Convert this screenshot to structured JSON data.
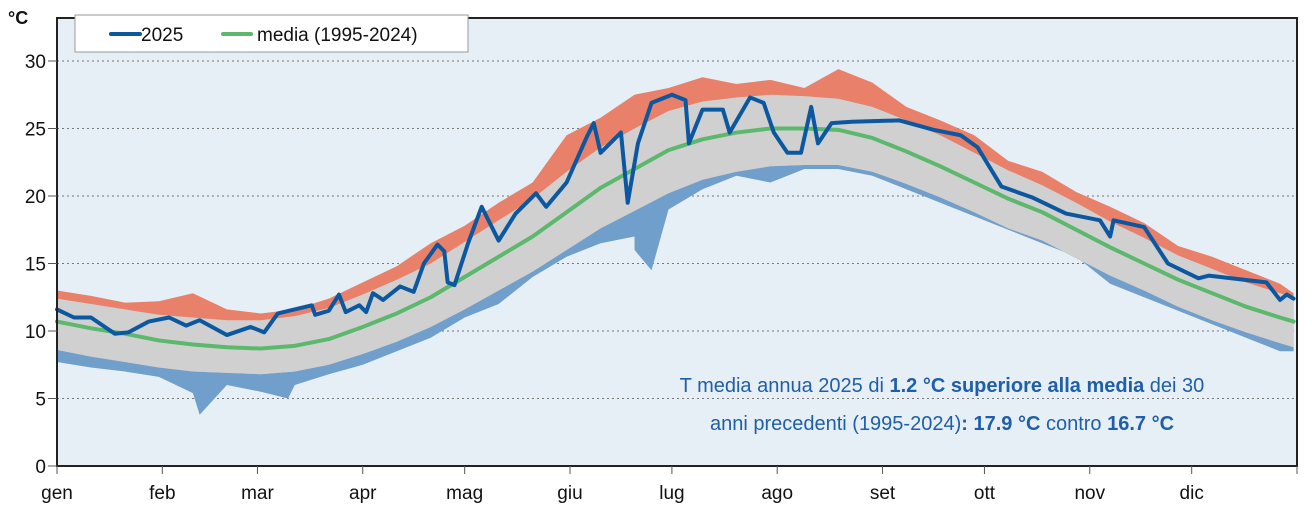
{
  "chart_data": {
    "type": "area",
    "ylabel": "°C",
    "ylim": [
      0,
      30
    ],
    "yticks": [
      0,
      5,
      10,
      15,
      20,
      25,
      30
    ],
    "xlim_days": [
      0,
      365
    ],
    "months": [
      {
        "label": "gen",
        "day": 0
      },
      {
        "label": "feb",
        "day": 31
      },
      {
        "label": "mar",
        "day": 59
      },
      {
        "label": "apr",
        "day": 90
      },
      {
        "label": "mag",
        "day": 120
      },
      {
        "label": "giu",
        "day": 151
      },
      {
        "label": "lug",
        "day": 181
      },
      {
        "label": "ago",
        "day": 212
      },
      {
        "label": "set",
        "day": 243
      },
      {
        "label": "ott",
        "day": 273
      },
      {
        "label": "nov",
        "day": 304
      },
      {
        "label": "dic",
        "day": 334
      }
    ],
    "grid": true,
    "legend": {
      "position": "top-left",
      "entries": [
        "2025",
        "media (1995-2024)"
      ]
    },
    "colors": {
      "y2025": "#0b58a0",
      "mean": "#5cb86c",
      "above": "#e8806a",
      "band": "#d0d0d0",
      "below": "#6f9fca",
      "plot_bg": "#e6eef6"
    },
    "ref_days": [
      0,
      10,
      20,
      30,
      40,
      50,
      60,
      70,
      80,
      90,
      100,
      110,
      120,
      130,
      140,
      150,
      160,
      170,
      180,
      190,
      200,
      210,
      220,
      230,
      240,
      250,
      260,
      270,
      280,
      290,
      300,
      310,
      320,
      330,
      340,
      350,
      360,
      364
    ],
    "ref_mean": [
      10.7,
      10.2,
      9.8,
      9.3,
      9.0,
      8.8,
      8.7,
      8.9,
      9.4,
      10.3,
      11.3,
      12.5,
      14.0,
      15.5,
      17.0,
      18.8,
      20.6,
      22.0,
      23.4,
      24.2,
      24.7,
      25.0,
      25.0,
      24.9,
      24.3,
      23.3,
      22.2,
      21.0,
      19.8,
      18.8,
      17.5,
      16.2,
      15.0,
      13.8,
      12.8,
      11.8,
      11.0,
      10.7
    ],
    "ref_band_high": [
      12.4,
      12.0,
      11.6,
      11.2,
      11.0,
      10.8,
      10.8,
      11.1,
      11.7,
      12.7,
      13.8,
      15.0,
      16.6,
      18.2,
      19.8,
      21.8,
      23.6,
      25.0,
      26.3,
      27.0,
      27.3,
      27.5,
      27.4,
      27.2,
      26.6,
      25.6,
      24.5,
      23.2,
      21.9,
      20.8,
      19.5,
      18.1,
      16.9,
      15.6,
      14.6,
      13.6,
      12.8,
      12.5
    ],
    "ref_band_low": [
      8.6,
      8.1,
      7.7,
      7.3,
      7.0,
      6.9,
      6.8,
      7.0,
      7.5,
      8.3,
      9.2,
      10.3,
      11.6,
      13.0,
      14.4,
      16.0,
      17.6,
      18.9,
      20.2,
      21.2,
      21.8,
      22.2,
      22.3,
      22.3,
      21.8,
      20.9,
      19.9,
      18.8,
      17.6,
      16.7,
      15.4,
      14.1,
      13.0,
      11.8,
      10.8,
      9.9,
      9.1,
      8.8
    ],
    "ref_max": [
      13.0,
      12.6,
      12.1,
      12.2,
      12.8,
      11.6,
      11.3,
      11.6,
      12.4,
      13.6,
      14.8,
      16.5,
      17.8,
      19.5,
      21.0,
      24.5,
      25.8,
      27.5,
      28.0,
      28.8,
      28.3,
      28.6,
      28.0,
      29.4,
      28.4,
      26.6,
      25.6,
      24.5,
      22.6,
      21.8,
      20.3,
      19.2,
      18.0,
      16.3,
      15.5,
      14.5,
      13.5,
      12.8
    ],
    "ref_min": [
      7.7,
      7.3,
      7.0,
      6.6,
      5.4,
      6.0,
      5.5,
      6.0,
      6.8,
      7.5,
      8.5,
      9.5,
      11.0,
      12.0,
      14.0,
      15.5,
      16.5,
      17.0,
      19.0,
      20.5,
      21.5,
      21.0,
      22.0,
      22.0,
      21.5,
      20.5,
      19.5,
      18.5,
      17.5,
      16.5,
      15.5,
      13.5,
      12.5,
      11.5,
      10.5,
      9.5,
      8.5,
      8.5
    ],
    "ref_min_spikes": [
      [
        42,
        3.8
      ],
      [
        68,
        5.0
      ],
      [
        175,
        14.5
      ],
      [
        170,
        16.0
      ]
    ],
    "series_2025": [
      [
        0,
        11.6
      ],
      [
        5,
        11.0
      ],
      [
        10,
        11.0
      ],
      [
        17,
        9.8
      ],
      [
        21,
        9.9
      ],
      [
        27,
        10.7
      ],
      [
        33,
        11.0
      ],
      [
        38,
        10.4
      ],
      [
        42,
        10.8
      ],
      [
        50,
        9.7
      ],
      [
        57,
        10.3
      ],
      [
        61,
        9.9
      ],
      [
        65,
        11.3
      ],
      [
        75,
        11.9
      ],
      [
        76,
        11.2
      ],
      [
        80,
        11.5
      ],
      [
        83,
        12.7
      ],
      [
        85,
        11.4
      ],
      [
        89,
        11.9
      ],
      [
        91,
        11.4
      ],
      [
        93,
        12.8
      ],
      [
        96,
        12.3
      ],
      [
        101,
        13.3
      ],
      [
        105,
        12.9
      ],
      [
        108,
        15.0
      ],
      [
        112,
        16.4
      ],
      [
        114,
        15.9
      ],
      [
        115,
        13.6
      ],
      [
        117,
        13.4
      ],
      [
        121,
        16.5
      ],
      [
        125,
        19.2
      ],
      [
        130,
        16.7
      ],
      [
        135,
        18.7
      ],
      [
        141,
        20.2
      ],
      [
        144,
        19.2
      ],
      [
        150,
        21.0
      ],
      [
        156,
        24.4
      ],
      [
        158,
        25.4
      ],
      [
        160,
        23.2
      ],
      [
        166,
        24.7
      ],
      [
        168,
        19.5
      ],
      [
        171,
        23.9
      ],
      [
        175,
        26.9
      ],
      [
        181,
        27.5
      ],
      [
        185,
        27.1
      ],
      [
        186,
        23.9
      ],
      [
        190,
        26.4
      ],
      [
        196,
        26.4
      ],
      [
        198,
        24.7
      ],
      [
        204,
        27.3
      ],
      [
        208,
        26.9
      ],
      [
        211,
        24.7
      ],
      [
        215,
        23.2
      ],
      [
        219,
        23.2
      ],
      [
        222,
        26.6
      ],
      [
        224,
        23.9
      ],
      [
        228,
        25.4
      ],
      [
        234,
        25.5
      ],
      [
        248,
        25.6
      ],
      [
        258,
        24.9
      ],
      [
        266,
        24.5
      ],
      [
        271,
        23.6
      ],
      [
        278,
        20.7
      ],
      [
        287,
        19.9
      ],
      [
        297,
        18.7
      ],
      [
        307,
        18.2
      ],
      [
        310,
        17.0
      ],
      [
        311,
        18.2
      ],
      [
        320,
        17.7
      ],
      [
        327,
        15.0
      ],
      [
        336,
        13.9
      ],
      [
        339,
        14.1
      ],
      [
        356,
        13.6
      ],
      [
        360,
        12.3
      ],
      [
        362,
        12.7
      ],
      [
        364,
        12.4
      ]
    ]
  },
  "annotation": {
    "line1_a": "T media annua 2025 di ",
    "line1_b": "1.2 °C superiore alla media",
    "line1_c": " dei 30",
    "line2_a": "anni precedenti (1995-2024)",
    "line2_b": ": 17.9 °C",
    "line2_c": " contro ",
    "line2_d": "16.7 °C"
  }
}
